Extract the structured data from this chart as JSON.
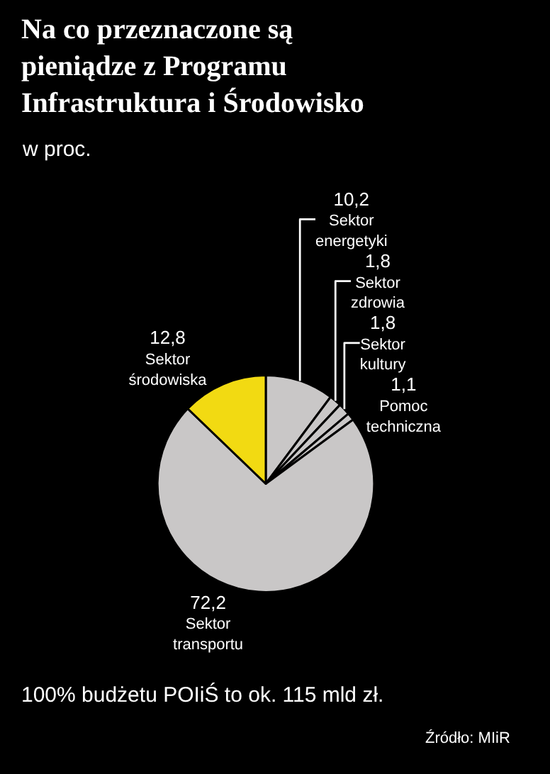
{
  "chart_data": {
    "type": "pie",
    "title": "Na co przeznaczone są pieniądze z Programu Infrastruktura i Środowisko",
    "subtitle": "w proc.",
    "categories": [
      "Sektor energetyki",
      "Sektor zdrowia",
      "Sektor kultury",
      "Pomoc techniczna",
      "Sektor transportu",
      "Sektor środowiska"
    ],
    "values": [
      10.2,
      1.8,
      1.8,
      1.1,
      72.2,
      12.8
    ],
    "value_labels": [
      "10,2",
      "1,8",
      "1,8",
      "1,1",
      "72,2",
      "12,8"
    ],
    "colors": [
      "#c9c7c7",
      "#c9c7c7",
      "#c9c7c7",
      "#c9c7c7",
      "#c9c7c7",
      "#f2da12"
    ],
    "legend": false,
    "annotations": [
      "100% budżetu POIiŚ to ok. 115 mld zł.",
      "Źródło: MIiR"
    ]
  }
}
